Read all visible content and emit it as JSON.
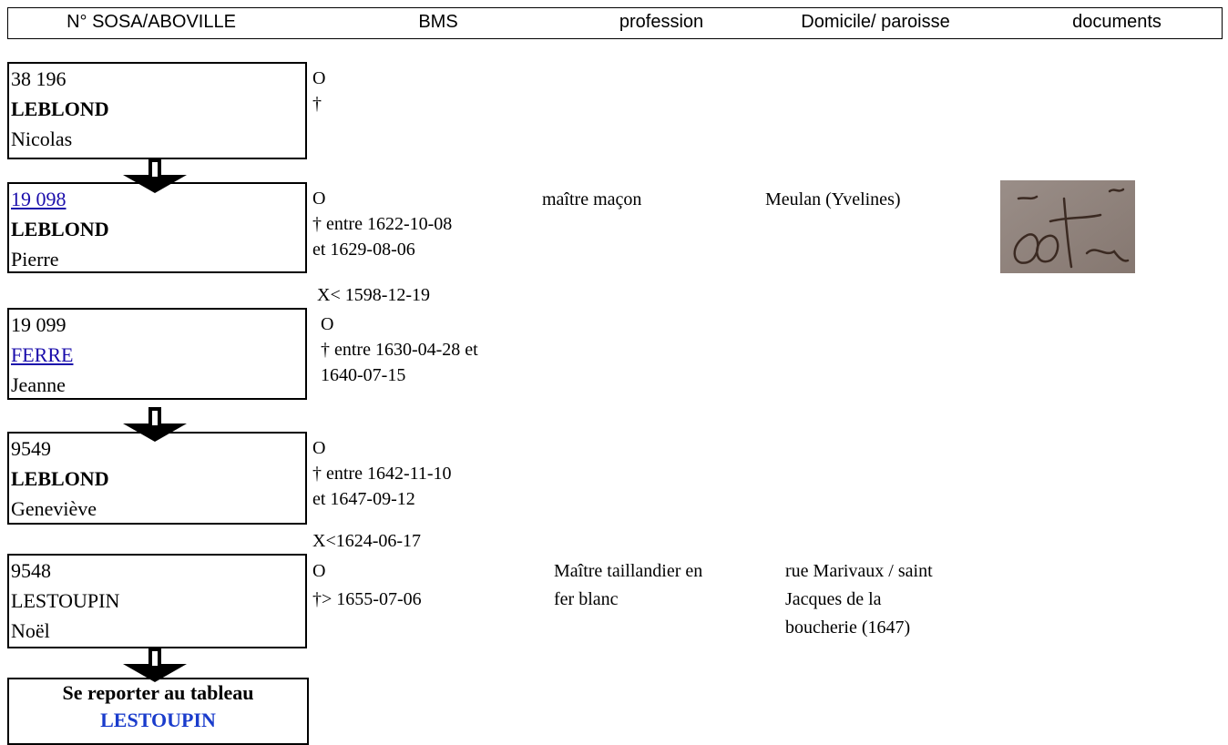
{
  "header": {
    "columns": [
      "N° SOSA/ABOVILLE",
      "BMS",
      "profession",
      "Domicile/ paroisse",
      "documents"
    ]
  },
  "persons": [
    {
      "number": "38 196",
      "surname": "LEBLOND",
      "given_name": "Nicolas",
      "bms": [
        "O",
        "†"
      ]
    },
    {
      "number": "19 098",
      "surname": "LEBLOND",
      "given_name": "Pierre",
      "bms": [
        "O",
        "† entre 1622-10-08",
        "et 1629-08-06"
      ],
      "profession": [
        "maître maçon"
      ],
      "domicile": [
        "Meulan (Yvelines)"
      ]
    },
    {
      "number": "19 099",
      "surname": "FERRE",
      "given_name": "Jeanne",
      "bms": [
        "O",
        "† entre 1630-04-28 et",
        "1640-07-15"
      ]
    },
    {
      "number": "9549",
      "surname": "LEBLOND",
      "given_name": "Geneviève",
      "bms": [
        "O",
        "† entre 1642-11-10",
        "et 1647-09-12"
      ]
    },
    {
      "number": "9548",
      "surname": "LESTOUPIN",
      "given_name": "Noël",
      "bms": [
        "O",
        "†> 1655-07-06"
      ],
      "profession": [
        "Maître taillandier en",
        "fer blanc"
      ],
      "domicile": [
        "rue Marivaux / saint",
        "Jacques de la",
        "boucherie (1647)"
      ]
    }
  ],
  "marriages": [
    "X< 1598-12-19",
    "X<1624-06-17"
  ],
  "reference": {
    "text": "Se reporter au tableau",
    "link": "LESTOUPIN"
  }
}
